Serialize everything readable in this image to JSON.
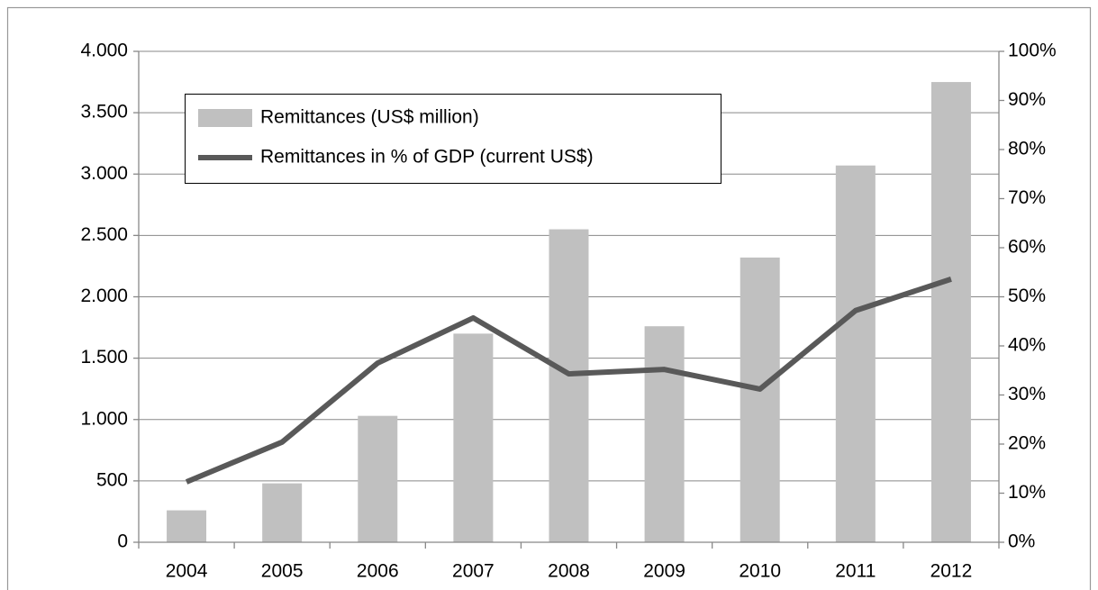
{
  "chart_data": {
    "type": "bar-line",
    "categories": [
      "2004",
      "2005",
      "2006",
      "2007",
      "2008",
      "2009",
      "2010",
      "2011",
      "2012"
    ],
    "series": [
      {
        "name": "Remittances (US$ million)",
        "type": "bar",
        "color": "#c0c0c0",
        "values": [
          260,
          480,
          1030,
          1700,
          2550,
          1760,
          2320,
          3070,
          3750
        ]
      },
      {
        "name": "Remittances in % of GDP (current US$)",
        "type": "line",
        "axis": "y2",
        "color": "#595959",
        "values": [
          12.3,
          20.4,
          36.5,
          45.7,
          34.3,
          35.2,
          31.2,
          47.2,
          53.6
        ]
      }
    ],
    "ylim": [
      0,
      4000
    ],
    "yticks": [
      0,
      500,
      {
        "value": 1000,
        "label": "1.000"
      },
      {
        "value": 1500,
        "label": "1.500"
      },
      {
        "value": 2000,
        "label": "2.000"
      },
      {
        "value": 2500,
        "label": "2.500"
      },
      {
        "value": 3000,
        "label": "3.000"
      },
      {
        "value": 3500,
        "label": "3.500"
      },
      {
        "value": 4000,
        "label": "4.000"
      }
    ],
    "y2lim": [
      0,
      100
    ],
    "y2ticks": [
      {
        "value": 0,
        "label": "0%"
      },
      {
        "value": 10,
        "label": "10%"
      },
      {
        "value": 20,
        "label": "20%"
      },
      {
        "value": 30,
        "label": "30%"
      },
      {
        "value": 40,
        "label": "40%"
      },
      {
        "value": 50,
        "label": "50%"
      },
      {
        "value": 60,
        "label": "60%"
      },
      {
        "value": 70,
        "label": "70%"
      },
      {
        "value": 80,
        "label": "80%"
      },
      {
        "value": 90,
        "label": "90%"
      },
      {
        "value": 100,
        "label": "100%"
      }
    ],
    "grid": true,
    "legend": "top-left"
  }
}
